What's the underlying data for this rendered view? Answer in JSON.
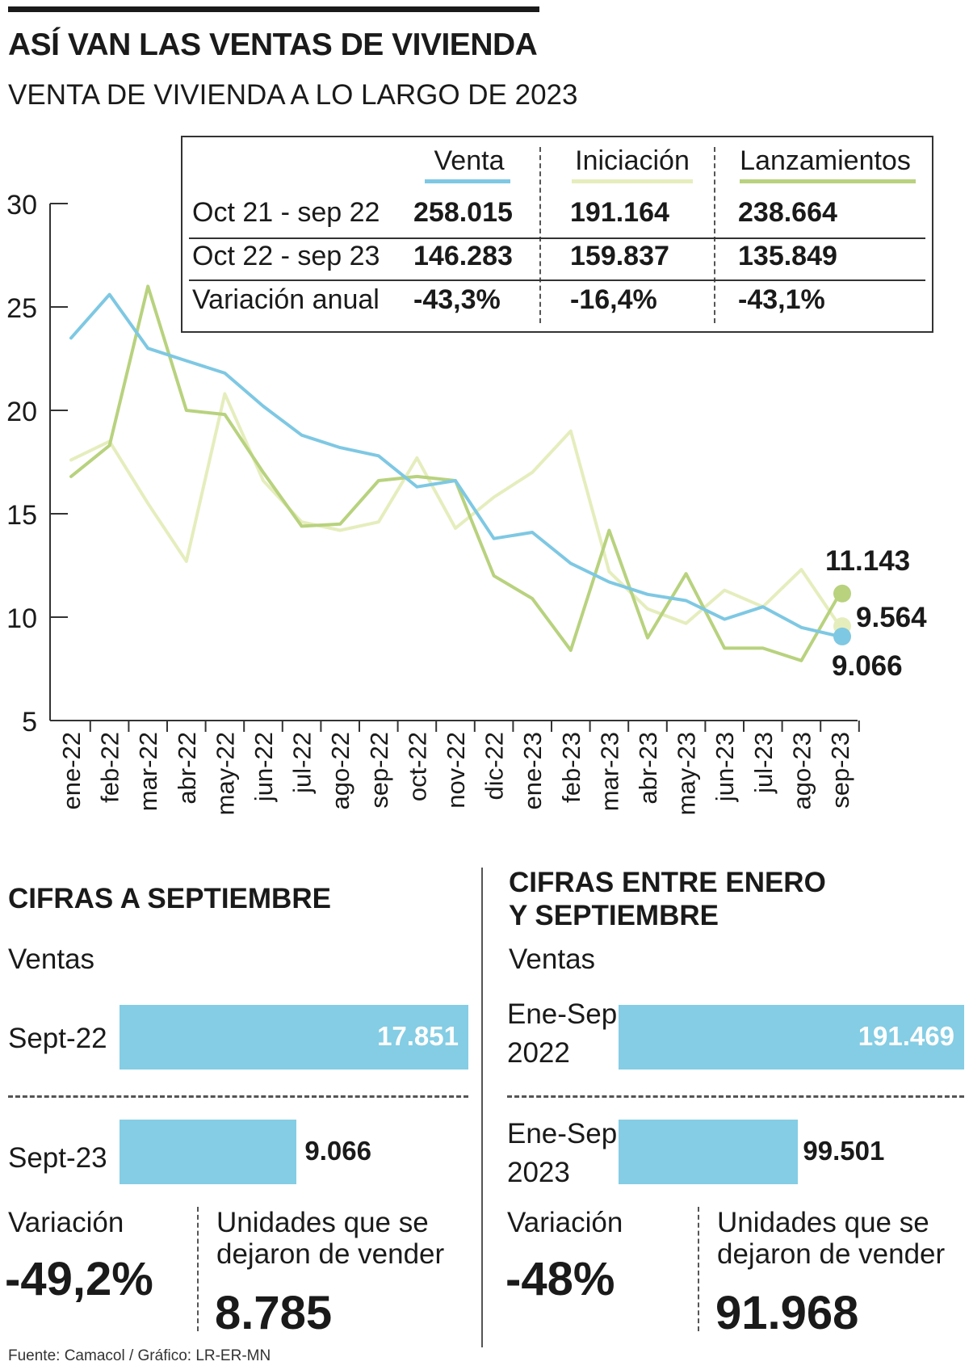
{
  "header": {
    "title": "ASÍ VAN LAS VENTAS DE VIVIENDA",
    "subtitle": "VENTA DE VIVIENDA A LO LARGO DE 2023"
  },
  "chart_data": {
    "type": "line",
    "categories": [
      "ene-22",
      "feb-22",
      "mar-22",
      "abr-22",
      "may-22",
      "jun-22",
      "jul-22",
      "ago-22",
      "sep-22",
      "oct-22",
      "nov-22",
      "dic-22",
      "ene-23",
      "feb-23",
      "mar-23",
      "abr-23",
      "may-23",
      "jun-23",
      "jul-23",
      "ago-23",
      "sep-23"
    ],
    "ylim": [
      5,
      30
    ],
    "yticks": [
      5,
      10,
      15,
      20,
      25,
      30
    ],
    "series": [
      {
        "name": "Venta",
        "color": "#7ec8e3",
        "values": [
          23.5,
          25.6,
          23.0,
          22.4,
          21.8,
          20.2,
          18.8,
          18.2,
          17.8,
          16.3,
          16.6,
          13.8,
          14.1,
          12.6,
          11.7,
          11.1,
          10.8,
          9.9,
          10.5,
          9.5,
          9.066
        ]
      },
      {
        "name": "Iniciación",
        "color": "#e6edbd",
        "values": [
          17.6,
          18.5,
          15.5,
          12.7,
          20.8,
          16.6,
          14.6,
          14.2,
          14.6,
          17.7,
          14.3,
          15.8,
          17.0,
          19.0,
          12.2,
          10.4,
          9.7,
          11.3,
          10.5,
          12.3,
          9.564
        ]
      },
      {
        "name": "Lanzamientos",
        "color": "#b8d27e",
        "values": [
          16.8,
          18.3,
          26.0,
          20.0,
          19.8,
          17.0,
          14.4,
          14.5,
          16.6,
          16.8,
          16.6,
          12.0,
          10.9,
          8.4,
          14.2,
          9.0,
          12.1,
          8.5,
          8.5,
          7.9,
          11.143
        ]
      }
    ],
    "end_labels": [
      "9.066",
      "9.564",
      "11.143"
    ]
  },
  "summary_table": {
    "headers": [
      "Venta",
      "Iniciación",
      "Lanzamientos"
    ],
    "rows": [
      {
        "label": "Oct 21 - sep 22",
        "values": [
          "258.015",
          "191.164",
          "238.664"
        ]
      },
      {
        "label": "Oct 22 - sep 23",
        "values": [
          "146.283",
          "159.837",
          "135.849"
        ]
      },
      {
        "label": "Variación anual",
        "values": [
          "-43,3%",
          "-16,4%",
          "-43,1%"
        ]
      }
    ]
  },
  "left_panel": {
    "title": "CIFRAS A SEPTIEMBRE",
    "subtitle": "Ventas",
    "bars": [
      {
        "label": "Sept-22",
        "value": 17851,
        "value_text": "17.851"
      },
      {
        "label": "Sept-23",
        "value": 9066,
        "value_text": "9.066"
      }
    ],
    "variation_label": "Variación",
    "variation_value": "-49,2%",
    "units_label_1": "Unidades que se",
    "units_label_2": "dejaron de vender",
    "units_value": "8.785"
  },
  "right_panel": {
    "title_1": "CIFRAS ENTRE ENERO",
    "title_2": "Y SEPTIEMBRE",
    "subtitle": "Ventas",
    "bars": [
      {
        "label_1": "Ene-Sep",
        "label_2": "2022",
        "value": 191469,
        "value_text": "191.469"
      },
      {
        "label_1": "Ene-Sep",
        "label_2": "2023",
        "value": 99501,
        "value_text": "99.501"
      }
    ],
    "variation_label": "Variación",
    "variation_value": "-48%",
    "units_label_1": "Unidades que se",
    "units_label_2": "dejaron de vender",
    "units_value": "91.968"
  },
  "source": "Fuente: Camacol / Gráfico: LR-ER-MN"
}
